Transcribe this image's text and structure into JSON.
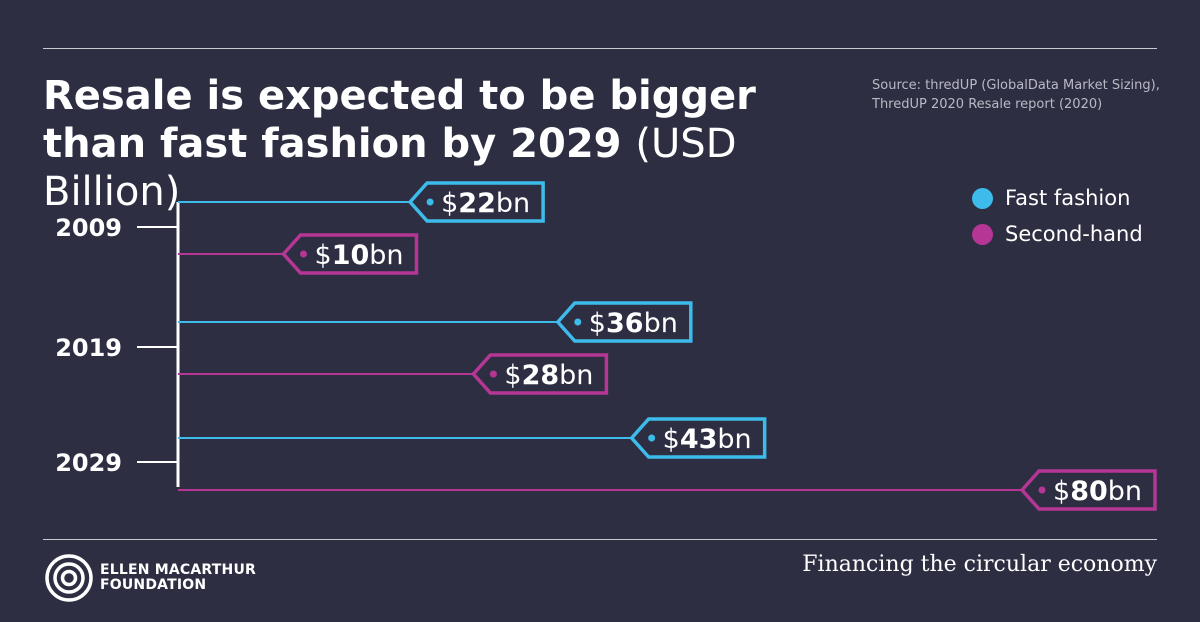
{
  "title": "Resale is expected to be bigger than fast fashion by 2029",
  "title_unit": "(USD Billion)",
  "source": "Source: thredUP (GlobalData Market Sizing), ThredUP 2020 Resale report (2020)",
  "footer": {
    "org_name": "ELLEN MACARTHUR\nFOUNDATION",
    "tagline": "Financing the circular economy"
  },
  "colors": {
    "background": "#2d2e42",
    "fast_fashion": "#3dbbea",
    "second_hand": "#b53694",
    "text": "#ffffff"
  },
  "chart_data": {
    "type": "bar",
    "orientation": "horizontal",
    "categories": [
      "2009",
      "2019",
      "2029"
    ],
    "series": [
      {
        "name": "Fast fashion",
        "color": "#3dbbea",
        "values": [
          22,
          36,
          43
        ],
        "labels": [
          "$22bn",
          "$36bn",
          "$43bn"
        ]
      },
      {
        "name": "Second-hand",
        "color": "#b53694",
        "values": [
          10,
          28,
          80
        ],
        "labels": [
          "$10bn",
          "$28bn",
          "$80bn"
        ]
      }
    ],
    "xlim": [
      0,
      80
    ],
    "legend_position": "top-right",
    "grid": false
  }
}
